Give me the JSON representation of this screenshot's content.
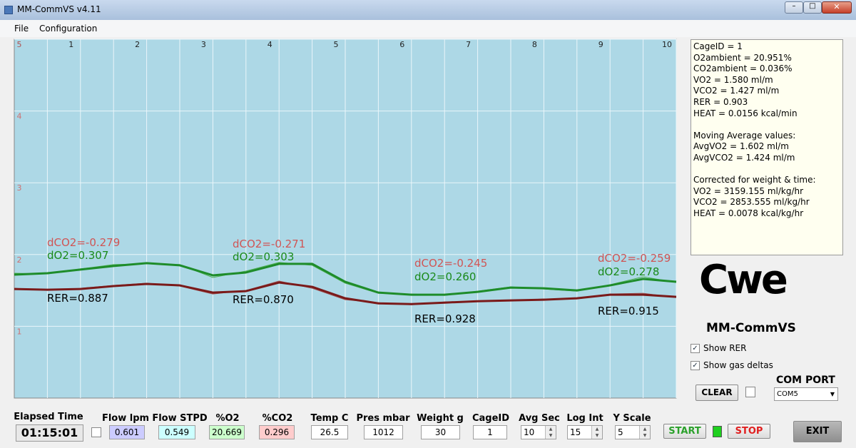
{
  "window": {
    "title": "MM-CommVS v4.11"
  },
  "menu": [
    "File",
    "Configuration"
  ],
  "chart": {
    "type": "line",
    "xlim": [
      0,
      10
    ],
    "ylim": [
      0,
      5
    ],
    "xticks": [
      1,
      2,
      3,
      4,
      5,
      6,
      7,
      8,
      9,
      10
    ],
    "yticks": [
      1,
      2,
      3,
      4,
      5
    ],
    "grid": true,
    "background": "#add8e6",
    "x": [
      0,
      0.5,
      1,
      1.5,
      2,
      2.5,
      3,
      3.5,
      4,
      4.5,
      5,
      5.5,
      6,
      6.5,
      7,
      7.5,
      8,
      8.5,
      9,
      9.5,
      10
    ],
    "series": [
      {
        "color": "#4caf50",
        "line_width": 1,
        "values": [
          1.74,
          1.73,
          1.8,
          1.86,
          1.87,
          1.86,
          1.68,
          1.77,
          1.89,
          1.85,
          1.6,
          1.46,
          1.45,
          1.43,
          1.49,
          1.55,
          1.52,
          1.49,
          1.58,
          1.69,
          1.61
        ]
      },
      {
        "color": "#a05050",
        "line_width": 1,
        "values": [
          1.53,
          1.5,
          1.53,
          1.57,
          1.6,
          1.56,
          1.45,
          1.5,
          1.63,
          1.53,
          1.37,
          1.33,
          1.3,
          1.34,
          1.35,
          1.36,
          1.38,
          1.38,
          1.45,
          1.46,
          1.4
        ]
      },
      {
        "color": "#1e8c2a",
        "line_width": 3,
        "values": [
          1.72,
          1.74,
          1.79,
          1.84,
          1.88,
          1.85,
          1.71,
          1.75,
          1.87,
          1.87,
          1.62,
          1.47,
          1.44,
          1.44,
          1.48,
          1.54,
          1.53,
          1.5,
          1.57,
          1.66,
          1.62
        ]
      },
      {
        "color": "#7a1a1a",
        "line_width": 3,
        "values": [
          1.52,
          1.51,
          1.52,
          1.56,
          1.59,
          1.57,
          1.47,
          1.49,
          1.61,
          1.55,
          1.39,
          1.32,
          1.31,
          1.33,
          1.35,
          1.36,
          1.37,
          1.39,
          1.44,
          1.44,
          1.41
        ]
      }
    ],
    "annotations": [
      {
        "dco2": "dCO2=-0.279",
        "do2": "dO2=0.307",
        "rer": "RER=0.887"
      },
      {
        "dco2": "dCO2=-0.271",
        "do2": "dO2=0.303",
        "rer": "RER=0.870"
      },
      {
        "dco2": "dCO2=-0.245",
        "do2": "dO2=0.260",
        "rer": "RER=0.928"
      },
      {
        "dco2": "dCO2=-0.259",
        "do2": "dO2=0.278",
        "rer": "RER=0.915"
      }
    ]
  },
  "info": [
    [
      "CageID = 1",
      "O2ambient = 20.951%",
      "CO2ambient = 0.036%",
      "VO2 = 1.580 ml/m",
      "VCO2 = 1.427 ml/m",
      "RER = 0.903",
      "HEAT = 0.0156 kcal/min"
    ],
    [
      "Moving Average values:",
      "AvgVO2 = 1.602 ml/m",
      "AvgVCO2 = 1.424 ml/m"
    ],
    [
      "Corrected for weight & time:",
      "VO2 = 3159.155 ml/kg/hr",
      "VCO2 = 2853.555 ml/kg/hr",
      "HEAT = 0.0078 kcal/kg/hr"
    ]
  ],
  "logo": {
    "mark": "Cwe",
    "name": "MM-CommVS"
  },
  "options": {
    "show_rer": "Show RER",
    "show_gas_deltas": "Show gas deltas",
    "com_port_label": "COM PORT",
    "com_port": "COM5",
    "clear": "CLEAR"
  },
  "fields": [
    {
      "label": "Elapsed Time",
      "value": "01:15:01"
    },
    {
      "label": "Flow lpm",
      "value": "0.601"
    },
    {
      "label": "Flow STPD",
      "value": "0.549"
    },
    {
      "label": "%O2",
      "value": "20.669"
    },
    {
      "label": "%CO2",
      "value": "0.296"
    },
    {
      "label": "Temp C",
      "value": "26.5"
    },
    {
      "label": "Pres mbar",
      "value": "1012"
    },
    {
      "label": "Weight g",
      "value": "30"
    },
    {
      "label": "CageID",
      "value": "1"
    },
    {
      "label": "Avg Sec",
      "value": "10"
    },
    {
      "label": "Log Int",
      "value": "15"
    },
    {
      "label": "Y Scale",
      "value": "5"
    }
  ],
  "buttons": {
    "start": "START",
    "stop": "STOP",
    "exit": "EXIT"
  }
}
